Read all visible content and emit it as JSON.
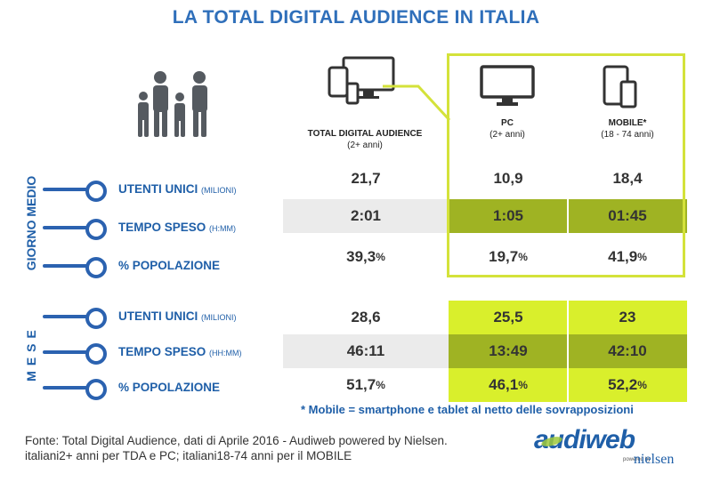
{
  "title": "LA TOTAL DIGITAL AUDIENCE IN ITALIA",
  "columns": [
    {
      "label": "TOTAL DIGITAL AUDIENCE",
      "sub": "(2+ anni)"
    },
    {
      "label": "PC",
      "sub": "(2+ anni)"
    },
    {
      "label": "MOBILE*",
      "sub": "(18 - 74 anni)"
    }
  ],
  "groups": [
    {
      "label": "GIORNO MEDIO",
      "rows": [
        {
          "label": "UTENTI UNICI",
          "unit": "(MILIONI)",
          "values": [
            "21,7",
            "10,9",
            "18,4"
          ]
        },
        {
          "label": "TEMPO SPESO",
          "unit": "(H:MM)",
          "values": [
            "2:01",
            "1:05",
            "01:45"
          ]
        },
        {
          "label": "% POPOLAZIONE",
          "unit": "",
          "values": [
            "39,3",
            "19,7",
            "41,9"
          ],
          "suffix": "%"
        }
      ]
    },
    {
      "label": "MESE",
      "rows": [
        {
          "label": "UTENTI UNICI",
          "unit": "(MILIONI)",
          "values": [
            "28,6",
            "25,5",
            "23"
          ]
        },
        {
          "label": "TEMPO SPESO",
          "unit": "(HH:MM)",
          "values": [
            "46:11",
            "13:49",
            "42:10"
          ]
        },
        {
          "label": "% POPOLAZIONE",
          "unit": "",
          "values": [
            "51,7",
            "46,1",
            "52,2"
          ],
          "suffix": "%"
        }
      ]
    }
  ],
  "note": "* Mobile = smartphone e tablet al netto delle sovrapposizioni",
  "source_line1": "Fonte: Total Digital Audience, dati di Aprile 2016 - Audiweb powered by Nielsen.",
  "source_line2": "italiani2+ anni per TDA e PC; italiani18-74 anni per il MOBILE",
  "logo": {
    "brand": "audiweb",
    "powered": "powered by",
    "partner": "nielsen"
  },
  "colors": {
    "title": "#2f6fba",
    "blue": "#2b62b0",
    "lime": "#d9ef2c",
    "olive": "#9fb323",
    "lime_border": "#d4e23a",
    "gray_band": "#ebebeb"
  },
  "icons": [
    "family-icon",
    "multi-device-icon",
    "monitor-icon",
    "smartphone-tablet-icon"
  ]
}
